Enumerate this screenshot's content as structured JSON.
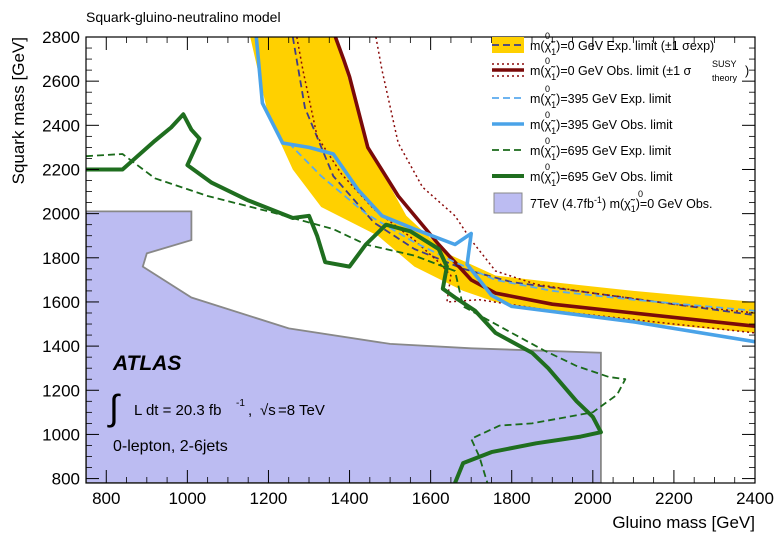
{
  "page": {
    "title": "Squark-gluino-neutralino model"
  },
  "colors": {
    "band_yellow": "#ffd000",
    "exp0_dashed": "#3c3c8c",
    "obs0_darkred": "#7a0a0a",
    "obs0_theory_dotted": "#8a0a0a",
    "exp395": "#5aaaee",
    "obs395": "#4aa3e8",
    "exp695": "#1a6a1a",
    "obs695": "#1f6e1f",
    "prev_fill": "#bcbcf2",
    "prev_edge": "#888888"
  },
  "annotations": {
    "atlas": "ATLAS",
    "lumi_integral": "∫",
    "lumi_text": "L dt = 20.3 fb",
    "lumi_exp": "-1",
    "lumi_sep": ", ",
    "sqrt_sym": "√s",
    "energy": "=8 TeV",
    "selection": "0-lepton, 2-6jets"
  },
  "chart_data": {
    "type": "line",
    "title": "Squark-gluino-neutralino model",
    "xlabel": "Gluino mass [GeV]",
    "ylabel": "Squark mass [GeV]",
    "xlim": [
      750,
      2400
    ],
    "ylim": [
      780,
      2800
    ],
    "x_ticks": [
      800,
      1000,
      1200,
      1400,
      1600,
      1800,
      2000,
      2200,
      2400
    ],
    "y_ticks": [
      800,
      1000,
      1200,
      1400,
      1600,
      1800,
      2000,
      2200,
      2400,
      2600,
      2800
    ],
    "legend_position": "top-right",
    "band": {
      "name": "m(χ̃⁰₁)=0 GeV Exp. limit (±1 σexp)",
      "upper": [
        [
          1365,
          2800
        ],
        [
          1450,
          2290
        ],
        [
          1540,
          1990
        ],
        [
          1640,
          1820
        ],
        [
          1760,
          1720
        ],
        [
          1900,
          1690
        ],
        [
          2100,
          1650
        ],
        [
          2400,
          1600
        ]
      ],
      "lower": [
        [
          2400,
          1460
        ],
        [
          2100,
          1510
        ],
        [
          1900,
          1560
        ],
        [
          1760,
          1600
        ],
        [
          1680,
          1650
        ],
        [
          1560,
          1760
        ],
        [
          1470,
          1900
        ],
        [
          1330,
          2030
        ],
        [
          1260,
          2200
        ],
        [
          1200,
          2440
        ],
        [
          1155,
          2800
        ]
      ]
    },
    "series": [
      {
        "name": "m(χ̃⁰₁)=0 GeV Exp. limit (±1 σexp)",
        "style": "dashed",
        "points": [
          [
            1260,
            2800
          ],
          [
            1290,
            2480
          ],
          [
            1360,
            2170
          ],
          [
            1460,
            1960
          ],
          [
            1560,
            1840
          ],
          [
            1680,
            1750
          ],
          [
            1800,
            1690
          ],
          [
            2000,
            1640
          ],
          [
            2200,
            1590
          ],
          [
            2400,
            1540
          ]
        ]
      },
      {
        "name": "m(χ̃⁰₁)=0 GeV Obs. limit (±1 σtheorySUSY)",
        "style": "solid",
        "points": [
          [
            1365,
            2800
          ],
          [
            1385,
            2700
          ],
          [
            1400,
            2620
          ],
          [
            1445,
            2300
          ],
          [
            1520,
            2080
          ],
          [
            1620,
            1860
          ],
          [
            1700,
            1700
          ],
          [
            1760,
            1640
          ],
          [
            1900,
            1590
          ],
          [
            2100,
            1550
          ],
          [
            2400,
            1490
          ]
        ]
      },
      {
        "name": "m(χ̃⁰₁)=0 GeV Obs. limit (±1 σtheorySUSY) +1σ",
        "style": "dotted",
        "points": [
          [
            1465,
            2800
          ],
          [
            1480,
            2650
          ],
          [
            1520,
            2320
          ],
          [
            1580,
            2120
          ],
          [
            1660,
            1990
          ],
          [
            1700,
            1880
          ],
          [
            1760,
            1740
          ],
          [
            1860,
            1680
          ],
          [
            2000,
            1640
          ],
          [
            2200,
            1590
          ],
          [
            2400,
            1550
          ]
        ]
      },
      {
        "name": "m(χ̃⁰₁)=0 GeV Obs. limit (±1 σtheorySUSY) -1σ",
        "style": "dotted",
        "points": [
          [
            1270,
            2800
          ],
          [
            1285,
            2650
          ],
          [
            1320,
            2350
          ],
          [
            1380,
            2180
          ],
          [
            1460,
            2020
          ],
          [
            1560,
            1880
          ],
          [
            1620,
            1780
          ],
          [
            1650,
            1720
          ],
          [
            1640,
            1600
          ],
          [
            1720,
            1610
          ],
          [
            1900,
            1560
          ],
          [
            2100,
            1520
          ],
          [
            2400,
            1460
          ]
        ]
      },
      {
        "name": "m(χ̃⁰₁)=395 GeV Exp. limit",
        "style": "dashed",
        "points": [
          [
            1250,
            2320
          ],
          [
            1330,
            2170
          ],
          [
            1440,
            2000
          ],
          [
            1560,
            1870
          ],
          [
            1660,
            1780
          ],
          [
            1760,
            1700
          ],
          [
            1900,
            1650
          ],
          [
            2100,
            1610
          ],
          [
            2400,
            1560
          ]
        ]
      },
      {
        "name": "m(χ̃⁰₁)=395 GeV Obs. limit",
        "style": "solid",
        "points": [
          [
            1170,
            2800
          ],
          [
            1185,
            2500
          ],
          [
            1235,
            2320
          ],
          [
            1300,
            2300
          ],
          [
            1360,
            2270
          ],
          [
            1420,
            2110
          ],
          [
            1480,
            1990
          ],
          [
            1560,
            1930
          ],
          [
            1660,
            1860
          ],
          [
            1700,
            1910
          ],
          [
            1690,
            1770
          ],
          [
            1750,
            1630
          ],
          [
            1800,
            1580
          ],
          [
            2100,
            1510
          ],
          [
            2400,
            1420
          ]
        ]
      },
      {
        "name": "m(χ̃⁰₁)=695 GeV Exp. limit",
        "style": "dashed",
        "points": [
          [
            750,
            2260
          ],
          [
            840,
            2270
          ],
          [
            920,
            2160
          ],
          [
            1050,
            2080
          ],
          [
            1200,
            2010
          ],
          [
            1360,
            1930
          ],
          [
            1440,
            1860
          ],
          [
            1560,
            1810
          ],
          [
            1660,
            1740
          ],
          [
            1680,
            1580
          ],
          [
            1800,
            1460
          ],
          [
            1880,
            1380
          ],
          [
            1960,
            1310
          ],
          [
            2040,
            1260
          ],
          [
            2080,
            1250
          ],
          [
            2060,
            1180
          ],
          [
            2000,
            1100
          ],
          [
            1850,
            1050
          ],
          [
            1770,
            1040
          ],
          [
            1700,
            980
          ],
          [
            1720,
            900
          ],
          [
            1740,
            780
          ]
        ]
      },
      {
        "name": "m(χ̃⁰₁)=695 GeV Obs. limit",
        "style": "solid",
        "points": [
          [
            750,
            2200
          ],
          [
            840,
            2200
          ],
          [
            920,
            2330
          ],
          [
            960,
            2390
          ],
          [
            990,
            2450
          ],
          [
            1010,
            2380
          ],
          [
            1030,
            2340
          ],
          [
            1000,
            2220
          ],
          [
            1060,
            2140
          ],
          [
            1150,
            2060
          ],
          [
            1260,
            1980
          ],
          [
            1300,
            1990
          ],
          [
            1320,
            1900
          ],
          [
            1340,
            1780
          ],
          [
            1400,
            1760
          ],
          [
            1440,
            1860
          ],
          [
            1490,
            1950
          ],
          [
            1550,
            1920
          ],
          [
            1620,
            1840
          ],
          [
            1640,
            1760
          ],
          [
            1630,
            1660
          ],
          [
            1660,
            1620
          ],
          [
            1710,
            1560
          ],
          [
            1760,
            1460
          ],
          [
            1850,
            1370
          ],
          [
            1890,
            1300
          ],
          [
            1960,
            1150
          ],
          [
            2000,
            1080
          ],
          [
            2020,
            1010
          ],
          [
            1970,
            990
          ],
          [
            1860,
            960
          ],
          [
            1750,
            920
          ],
          [
            1680,
            870
          ],
          [
            1660,
            780
          ]
        ]
      }
    ],
    "previous_result": {
      "name": "7TeV (4.7fb⁻¹) m(χ̃⁰₁)=0 GeV Obs.",
      "polygon": [
        [
          750,
          780
        ],
        [
          750,
          2010
        ],
        [
          1010,
          2010
        ],
        [
          1010,
          1880
        ],
        [
          900,
          1820
        ],
        [
          890,
          1760
        ],
        [
          1010,
          1620
        ],
        [
          1250,
          1480
        ],
        [
          1500,
          1410
        ],
        [
          1700,
          1390
        ],
        [
          2020,
          1370
        ],
        [
          2020,
          780
        ]
      ]
    }
  }
}
